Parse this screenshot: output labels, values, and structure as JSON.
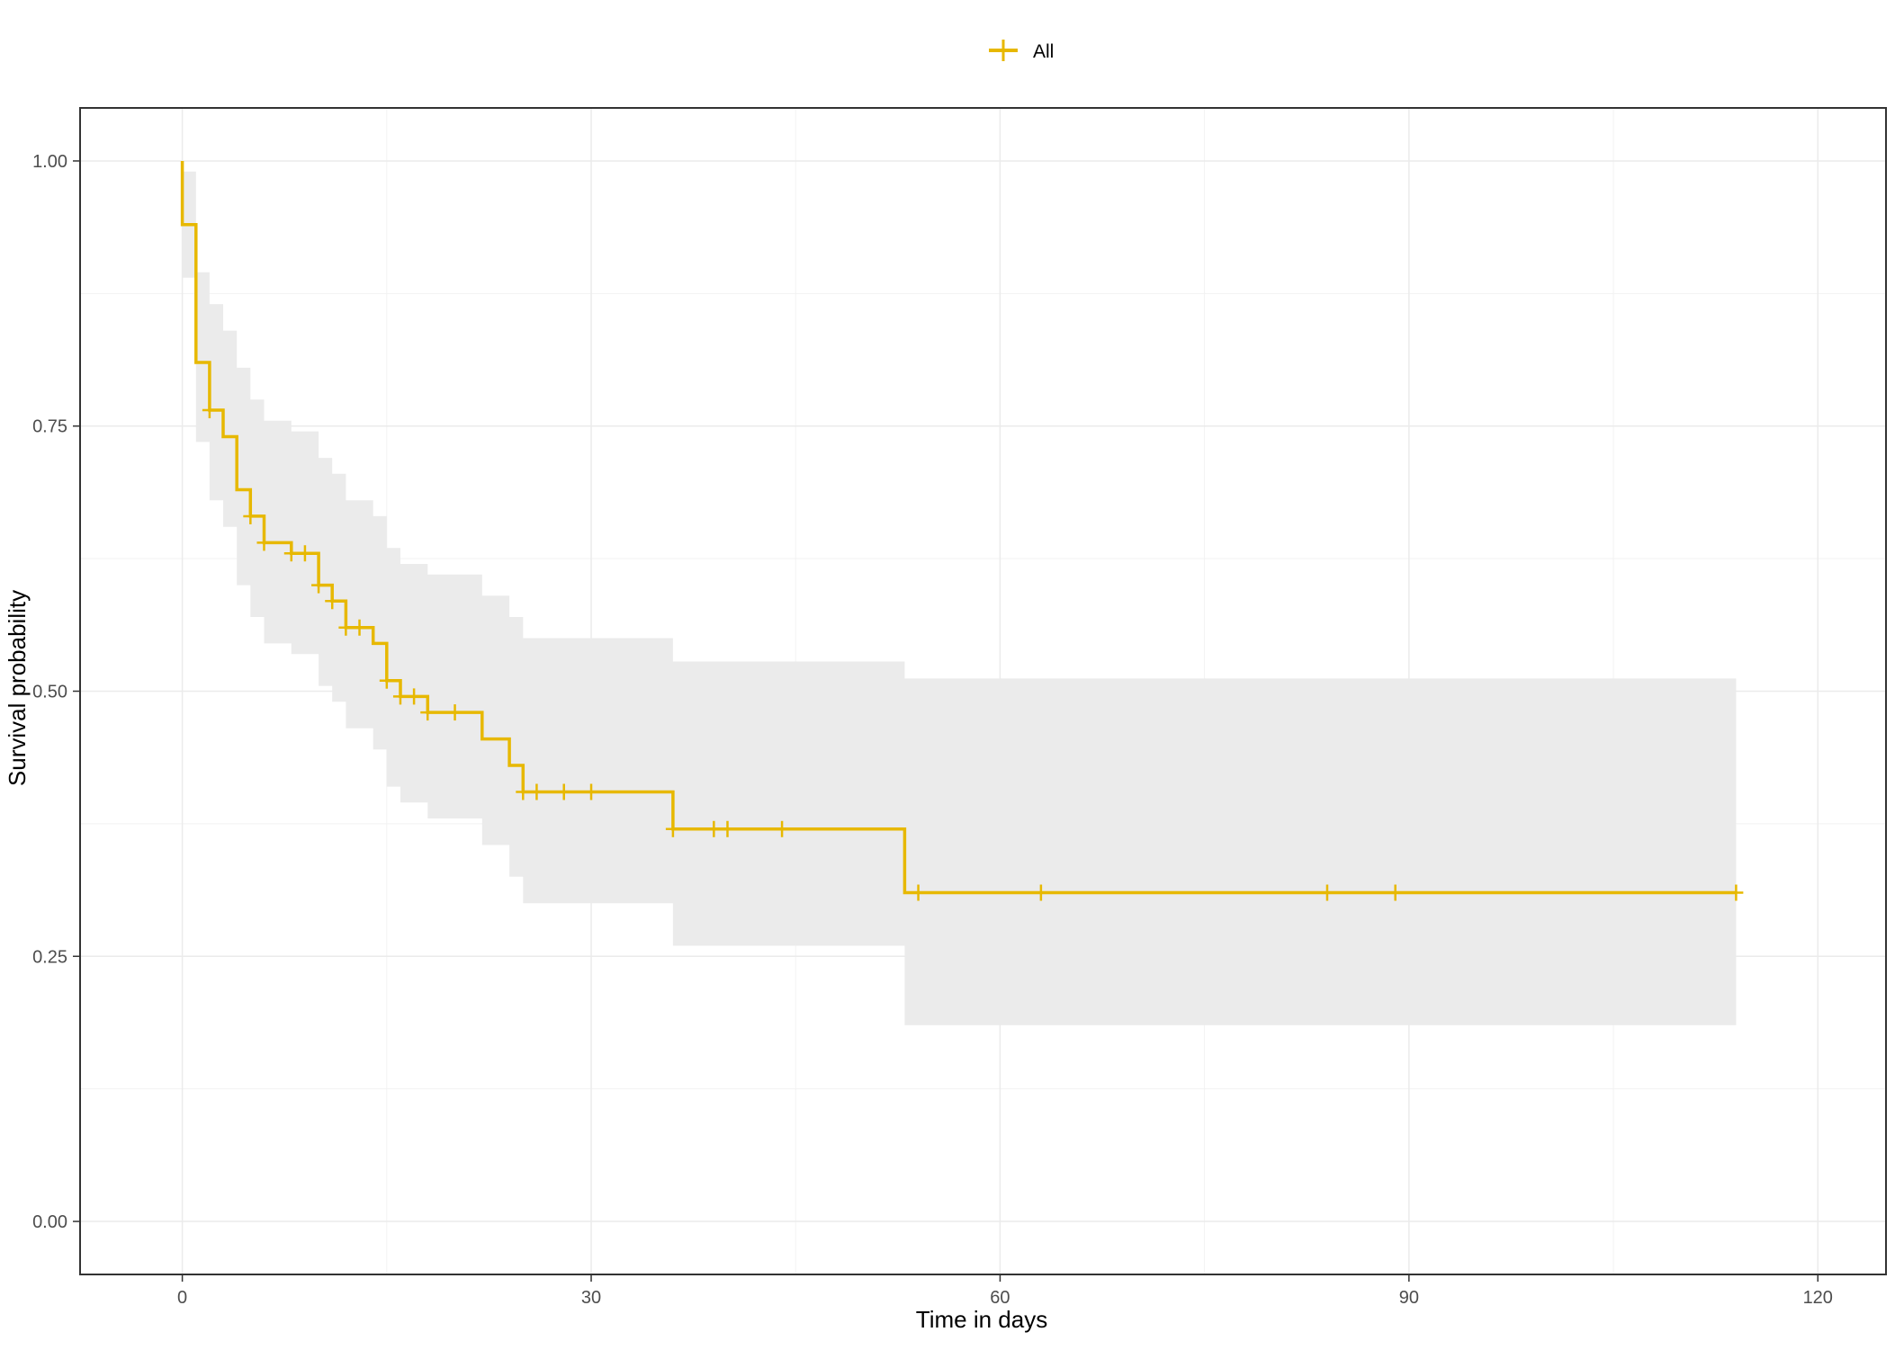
{
  "chart_data": {
    "type": "line",
    "subtype": "kaplan-meier step curve with confidence band",
    "xlabel": "Time in days",
    "ylabel": "Survival probability",
    "xlim": [
      -7.5,
      125
    ],
    "ylim": [
      -0.05,
      1.05
    ],
    "x_ticks": [
      0,
      30,
      60,
      90,
      120
    ],
    "x_tick_labels": [
      "0",
      "30",
      "60",
      "90",
      "120"
    ],
    "y_ticks": [
      0,
      0.25,
      0.5,
      0.75,
      1.0
    ],
    "y_tick_labels": [
      "0.00",
      "0.25",
      "0.50",
      "0.75",
      "1.00"
    ],
    "grid": true,
    "legend": {
      "position": "top",
      "entries": [
        "All"
      ]
    },
    "colors": {
      "series": "#E7B800",
      "band": "#ebebeb",
      "grid": "#ebebeb",
      "frame": "#333333"
    },
    "series": [
      {
        "name": "All",
        "steps": [
          [
            0,
            1.0
          ],
          [
            0,
            0.94
          ],
          [
            1,
            0.81
          ],
          [
            2,
            0.765
          ],
          [
            3,
            0.74
          ],
          [
            4,
            0.69
          ],
          [
            5,
            0.665
          ],
          [
            6,
            0.64
          ],
          [
            8,
            0.63
          ],
          [
            10,
            0.6
          ],
          [
            11,
            0.585
          ],
          [
            12,
            0.56
          ],
          [
            14,
            0.545
          ],
          [
            15,
            0.51
          ],
          [
            16,
            0.495
          ],
          [
            18,
            0.48
          ],
          [
            22,
            0.455
          ],
          [
            24,
            0.43
          ],
          [
            25,
            0.405
          ],
          [
            36,
            0.37
          ],
          [
            53,
            0.31
          ],
          [
            114,
            0.31
          ]
        ],
        "censored": [
          [
            2,
            0.765
          ],
          [
            5,
            0.665
          ],
          [
            6,
            0.64
          ],
          [
            8,
            0.63
          ],
          [
            9,
            0.63
          ],
          [
            10,
            0.6
          ],
          [
            11,
            0.585
          ],
          [
            12,
            0.56
          ],
          [
            13,
            0.56
          ],
          [
            15,
            0.51
          ],
          [
            16,
            0.495
          ],
          [
            17,
            0.495
          ],
          [
            18,
            0.48
          ],
          [
            20,
            0.48
          ],
          [
            25,
            0.405
          ],
          [
            26,
            0.405
          ],
          [
            28,
            0.405
          ],
          [
            30,
            0.405
          ],
          [
            36,
            0.37
          ],
          [
            39,
            0.37
          ],
          [
            40,
            0.37
          ],
          [
            44,
            0.37
          ],
          [
            54,
            0.31
          ],
          [
            63,
            0.31
          ],
          [
            84,
            0.31
          ],
          [
            89,
            0.31
          ],
          [
            114,
            0.31
          ]
        ],
        "ci_band": [
          {
            "x": 0,
            "lower": 0.89,
            "upper": 0.99
          },
          {
            "x": 1,
            "lower": 0.735,
            "upper": 0.895
          },
          {
            "x": 2,
            "lower": 0.68,
            "upper": 0.865
          },
          {
            "x": 3,
            "lower": 0.655,
            "upper": 0.84
          },
          {
            "x": 4,
            "lower": 0.6,
            "upper": 0.805
          },
          {
            "x": 5,
            "lower": 0.57,
            "upper": 0.775
          },
          {
            "x": 6,
            "lower": 0.545,
            "upper": 0.755
          },
          {
            "x": 8,
            "lower": 0.535,
            "upper": 0.745
          },
          {
            "x": 10,
            "lower": 0.505,
            "upper": 0.72
          },
          {
            "x": 11,
            "lower": 0.49,
            "upper": 0.705
          },
          {
            "x": 12,
            "lower": 0.465,
            "upper": 0.68
          },
          {
            "x": 14,
            "lower": 0.445,
            "upper": 0.665
          },
          {
            "x": 15,
            "lower": 0.41,
            "upper": 0.635
          },
          {
            "x": 16,
            "lower": 0.395,
            "upper": 0.62
          },
          {
            "x": 18,
            "lower": 0.38,
            "upper": 0.61
          },
          {
            "x": 22,
            "lower": 0.355,
            "upper": 0.59
          },
          {
            "x": 24,
            "lower": 0.325,
            "upper": 0.57
          },
          {
            "x": 25,
            "lower": 0.3,
            "upper": 0.55
          },
          {
            "x": 36,
            "lower": 0.26,
            "upper": 0.528
          },
          {
            "x": 53,
            "lower": 0.185,
            "upper": 0.512
          },
          {
            "x": 114,
            "lower": 0.185,
            "upper": 0.512
          }
        ]
      }
    ]
  }
}
